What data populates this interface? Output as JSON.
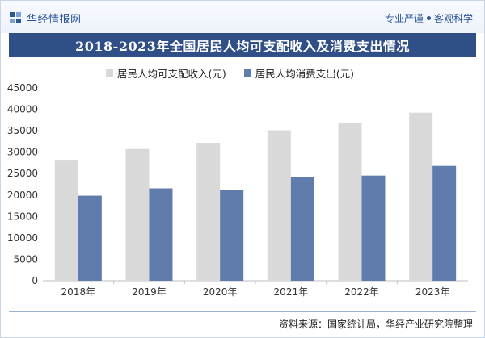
{
  "header": {
    "brand": "华经情报网",
    "slogan_left": "专业严谨",
    "slogan_right": "客观科学"
  },
  "colors": {
    "income": "#d9d9d9",
    "spending": "#607cad",
    "title_band": "#2f4f86",
    "brand": "#2c5697"
  },
  "chart_data": {
    "type": "bar",
    "title": "2018-2023年全国居民人均可支配收入及消费支出情况",
    "categories": [
      "2018年",
      "2019年",
      "2020年",
      "2021年",
      "2022年",
      "2023年"
    ],
    "series": [
      {
        "name": "居民人均可支配收入(元)",
        "values": [
          28228,
          30733,
          32189,
          35128,
          36883,
          39218
        ]
      },
      {
        "name": "居民人均消费支出(元)",
        "values": [
          19853,
          21559,
          21210,
          24100,
          24538,
          26796
        ]
      }
    ],
    "ylim": [
      0,
      45000
    ],
    "yticks": [
      0,
      5000,
      10000,
      15000,
      20000,
      25000,
      30000,
      35000,
      40000,
      45000
    ],
    "xlabel": "",
    "ylabel": ""
  },
  "footer": {
    "source": "资料来源：国家统计局，华经产业研究院整理"
  }
}
